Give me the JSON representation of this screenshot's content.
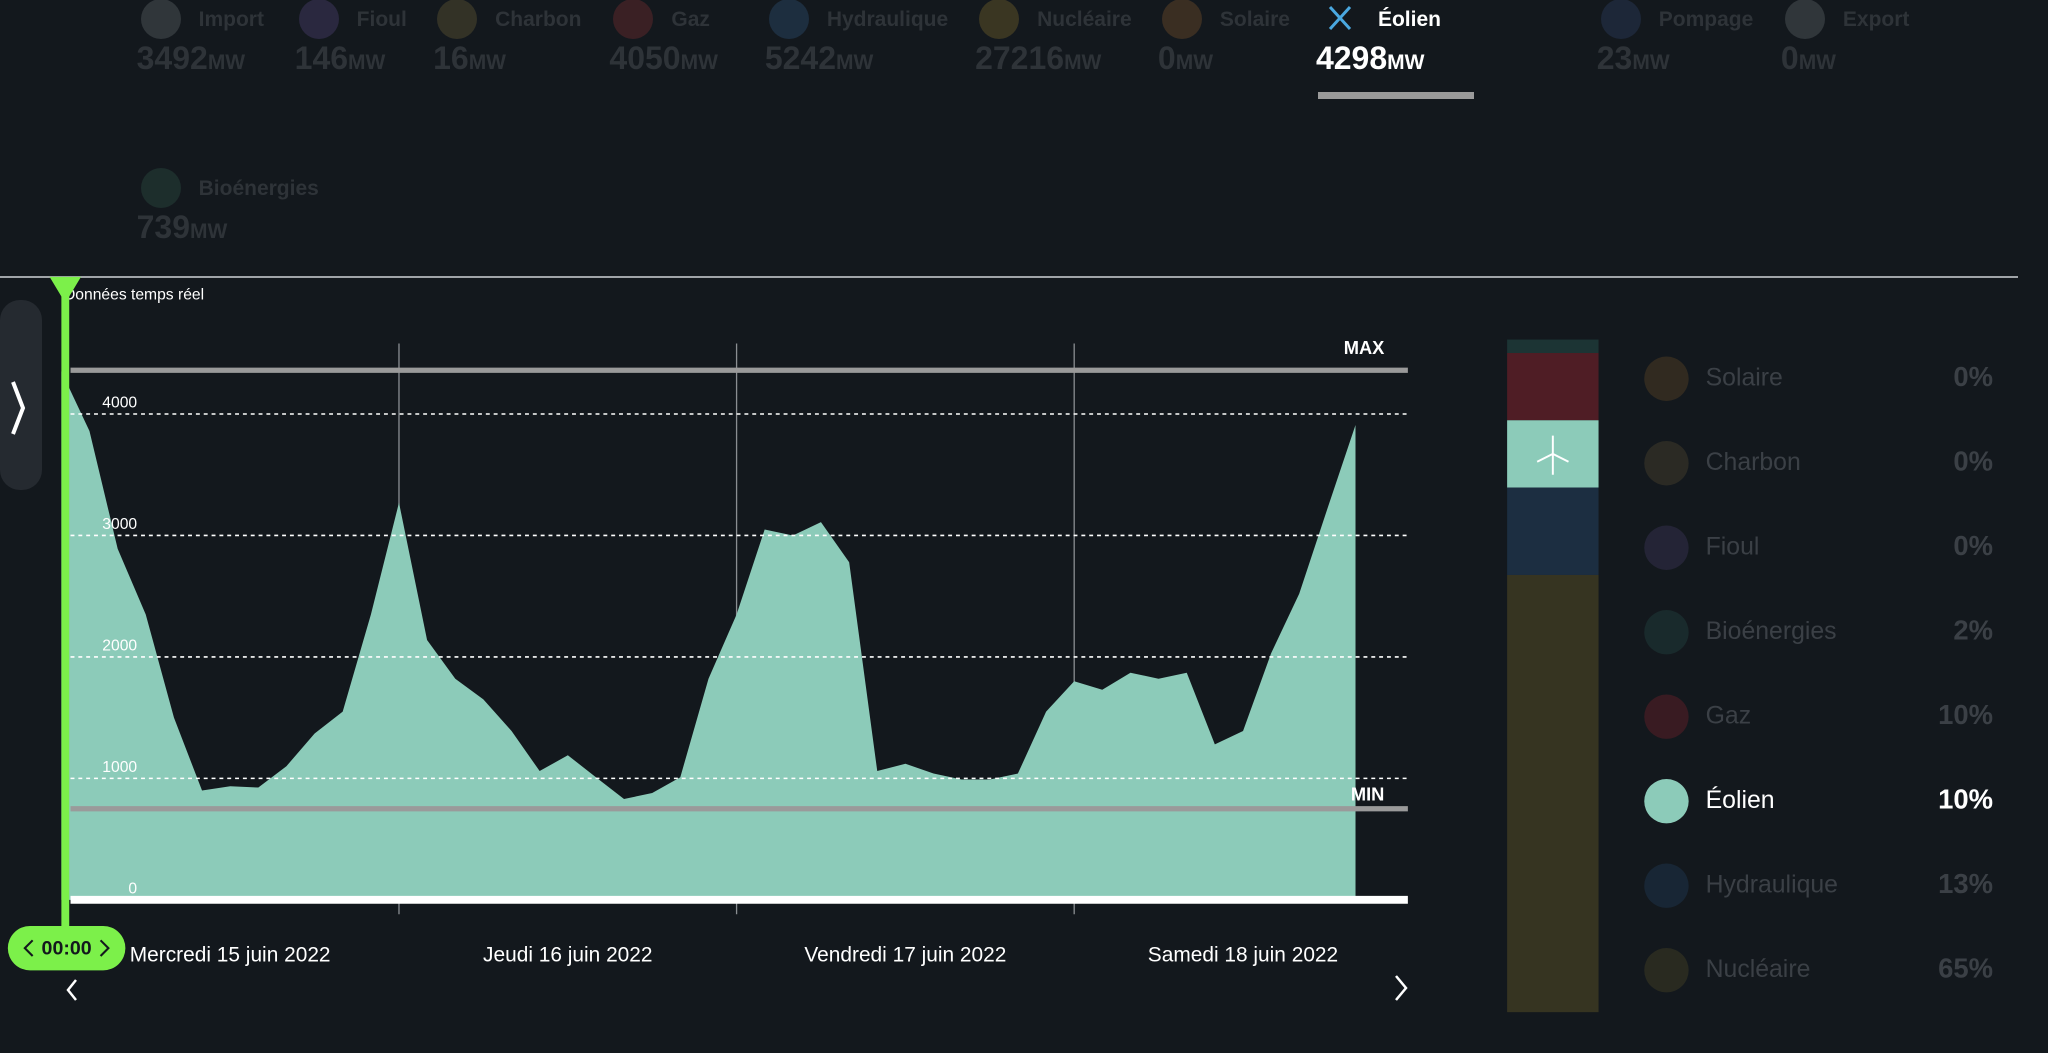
{
  "header": {
    "unit": "MW",
    "sources": [
      {
        "name": "Import",
        "value": 3492
      },
      {
        "name": "Fioul",
        "value": 146
      },
      {
        "name": "Charbon",
        "value": 16
      },
      {
        "name": "Gaz",
        "value": 4050
      },
      {
        "name": "Hydraulique",
        "value": 5242
      },
      {
        "name": "Nucléaire",
        "value": 27216
      },
      {
        "name": "Solaire",
        "value": 0
      },
      {
        "name": "Éolien",
        "value": 4298,
        "selected": true
      },
      {
        "name": "Pompage",
        "value": 23
      },
      {
        "name": "Export",
        "value": 0
      },
      {
        "name": "Bioénergies",
        "value": 739
      }
    ]
  },
  "chart_data": [
    {
      "type": "area",
      "title": "Données temps réel",
      "color": "#8ccbb9",
      "x": [
        0,
        2,
        4,
        6,
        8,
        10,
        12,
        14,
        16,
        18,
        20,
        22,
        24,
        26,
        28,
        30,
        32,
        34,
        36,
        38,
        40,
        42,
        44,
        46,
        48,
        50,
        52,
        54,
        56,
        58,
        60,
        62,
        64,
        66,
        68,
        70,
        72,
        74,
        76,
        78,
        80,
        82,
        84,
        86,
        88,
        90,
        92
      ],
      "values": [
        4350,
        3860,
        2890,
        2350,
        1500,
        900,
        935,
        925,
        1100,
        1370,
        1550,
        2350,
        3270,
        2140,
        1820,
        1650,
        1390,
        1060,
        1190,
        1010,
        830,
        880,
        1010,
        1820,
        2350,
        3050,
        3000,
        3110,
        2780,
        1060,
        1120,
        1040,
        990,
        990,
        1040,
        1550,
        1800,
        1730,
        1870,
        1820,
        1870,
        1280,
        1390,
        2030,
        2520,
        3220,
        3910
      ],
      "xlim": [
        0,
        96
      ],
      "xticks": [
        24,
        48,
        72
      ],
      "day_labels": [
        "Mercredi 15 juin 2022",
        "Jeudi 16 juin 2022",
        "Vendredi 17 juin 2022",
        "Samedi 18 juin 2022"
      ],
      "ylim": [
        0,
        5000
      ],
      "yticks": [
        0,
        1000,
        2000,
        3000,
        4000
      ],
      "grid": true,
      "max_line": {
        "label": "MAX",
        "value": 4360
      },
      "min_line": {
        "label": "MIN",
        "value": 750
      },
      "cursor_label": "00:00"
    },
    {
      "type": "stacked-bar",
      "categories": [
        "Solaire",
        "Charbon",
        "Fioul",
        "Bioénergies",
        "Gaz",
        "Éolien",
        "Hydraulique",
        "Nucléaire"
      ],
      "values": [
        0,
        0,
        0,
        2,
        10,
        10,
        13,
        65
      ],
      "value_labels": [
        "0%",
        "0%",
        "0%",
        "2%",
        "10%",
        "10%",
        "13%",
        "65%"
      ],
      "colors": [
        "#4a3a22",
        "#3f3a2a",
        "#33304a",
        "#1f3a38",
        "#5a1f27",
        "#8ccbb9",
        "#1e3348",
        "#3d3a22"
      ],
      "selected": "Éolien"
    }
  ]
}
